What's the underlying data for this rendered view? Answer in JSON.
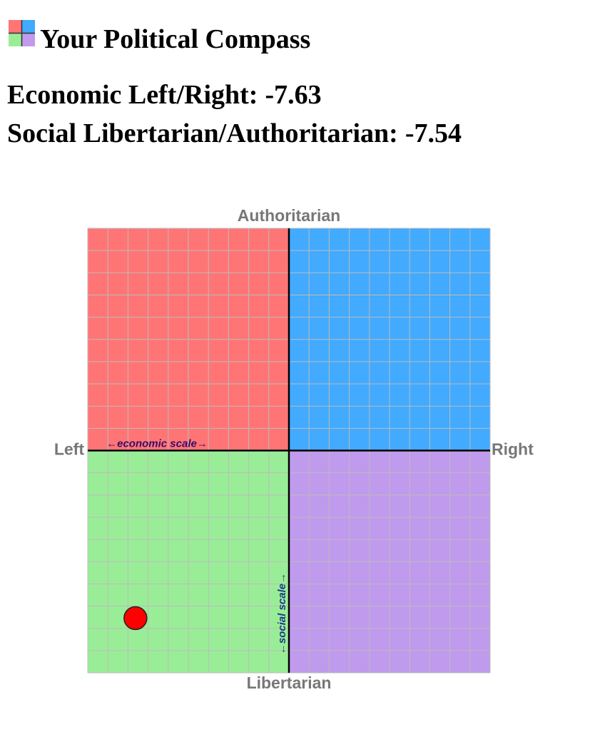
{
  "header": {
    "title": "Your Political Compass",
    "economic_label": "Economic Left/Right:",
    "social_label": "Social Libertarian/Authoritarian:"
  },
  "chart_data": {
    "type": "scatter",
    "x_label_left": "Left",
    "x_label_right": "Right",
    "y_label_top": "Authoritarian",
    "y_label_bottom": "Libertarian",
    "x_scale_label": "←economic scale→",
    "y_scale_label": "←social scale→",
    "x": [
      -7.63
    ],
    "y": [
      -7.54
    ],
    "color": "#ff0000",
    "xlim": [
      -10,
      10
    ],
    "ylim": [
      -10,
      10
    ],
    "xticks": [
      -10,
      -9,
      -8,
      -7,
      -6,
      -5,
      -4,
      -3,
      -2,
      -1,
      0,
      1,
      2,
      3,
      4,
      5,
      6,
      7,
      8,
      9,
      10
    ],
    "yticks": [
      -10,
      -9,
      -8,
      -7,
      -6,
      -5,
      -4,
      -3,
      -2,
      -1,
      0,
      1,
      2,
      3,
      4,
      5,
      6,
      7,
      8,
      9,
      10
    ],
    "grid": true,
    "quadrant_colors": {
      "top_left": "#ff7575",
      "top_right": "#42aaff",
      "bottom_left": "#9aed97",
      "bottom_right": "#c09aed"
    }
  }
}
